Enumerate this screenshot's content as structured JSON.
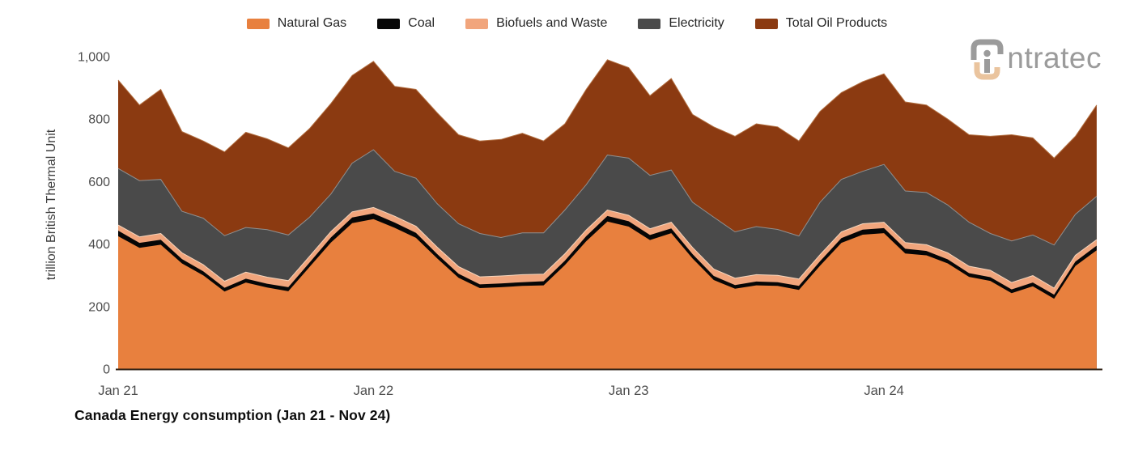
{
  "page": {
    "background": "#ffffff"
  },
  "logo": {
    "name": "intratec",
    "i_letter": "i",
    "text_rest": "ntratec",
    "gray": "#9b9b9b",
    "tan": "#eac49e"
  },
  "axis": {
    "y_tick_labels": [
      "0",
      "200",
      "400",
      "600",
      "800",
      "1,000"
    ],
    "y_tick_values": [
      0,
      200,
      400,
      600,
      800,
      1000
    ],
    "x_tick_labels": [
      "Jan 21",
      "Jan 22",
      "Jan 23",
      "Jan 24"
    ],
    "x_tick_indices": [
      0,
      12,
      24,
      36
    ]
  },
  "chart_data": {
    "type": "area",
    "stacked": true,
    "title": "Canada Energy consumption (Jan 21 - Nov 24)",
    "xlabel": "",
    "ylabel": "trillion British Thermal Unit",
    "ylim": [
      0,
      1000
    ],
    "grid": false,
    "legend_position": "top",
    "x": [
      "Jan 21",
      "Feb 21",
      "Mar 21",
      "Apr 21",
      "May 21",
      "Jun 21",
      "Jul 21",
      "Aug 21",
      "Sep 21",
      "Oct 21",
      "Nov 21",
      "Dec 21",
      "Jan 22",
      "Feb 22",
      "Mar 22",
      "Apr 22",
      "May 22",
      "Jun 22",
      "Jul 22",
      "Aug 22",
      "Sep 22",
      "Oct 22",
      "Nov 22",
      "Dec 22",
      "Jan 23",
      "Feb 23",
      "Mar 23",
      "Apr 23",
      "May 23",
      "Jun 23",
      "Jul 23",
      "Aug 23",
      "Sep 23",
      "Oct 23",
      "Nov 23",
      "Dec 23",
      "Jan 24",
      "Feb 24",
      "Mar 24",
      "Apr 24",
      "May 24",
      "Jun 24",
      "Jul 24",
      "Aug 24",
      "Sep 24",
      "Oct 24",
      "Nov 24"
    ],
    "series": [
      {
        "name": "Natural Gas",
        "color": "#E8803E",
        "values": [
          425,
          388,
          398,
          338,
          300,
          248,
          277,
          261,
          249,
          327,
          405,
          467,
          480,
          452,
          420,
          354,
          292,
          259,
          262,
          266,
          268,
          333,
          409,
          472,
          456,
          413,
          435,
          354,
          285,
          257,
          268,
          266,
          253,
          331,
          404,
          430,
          435,
          370,
          364,
          338,
          295,
          282,
          243,
          265,
          225,
          330,
          380
        ]
      },
      {
        "name": "Coal",
        "color": "#060606",
        "values": [
          18,
          16,
          16,
          14,
          13,
          12,
          12,
          12,
          13,
          14,
          16,
          18,
          18,
          17,
          16,
          14,
          13,
          12,
          12,
          12,
          13,
          14,
          16,
          18,
          17,
          16,
          15,
          14,
          13,
          12,
          12,
          12,
          13,
          14,
          15,
          16,
          16,
          15,
          14,
          13,
          12,
          12,
          12,
          12,
          13,
          14,
          15
        ]
      },
      {
        "name": "Biofuels and Waste",
        "color": "#F1A57C",
        "values": [
          18,
          19,
          20,
          20,
          21,
          21,
          21,
          21,
          21,
          20,
          19,
          18,
          19,
          20,
          21,
          22,
          23,
          24,
          24,
          24,
          23,
          22,
          20,
          19,
          19,
          20,
          20,
          21,
          22,
          22,
          22,
          22,
          22,
          21,
          20,
          19,
          19,
          20,
          20,
          21,
          22,
          22,
          22,
          22,
          21,
          20,
          19
        ]
      },
      {
        "name": "Electricity",
        "color": "#4A4A4A",
        "values": [
          181,
          180,
          173,
          133,
          149,
          146,
          143,
          152,
          146,
          125,
          120,
          156,
          185,
          144,
          154,
          139,
          137,
          139,
          123,
          134,
          132,
          140,
          145,
          176,
          183,
          171,
          167,
          145,
          166,
          148,
          154,
          147,
          138,
          168,
          168,
          168,
          185,
          165,
          167,
          153,
          141,
          118,
          133,
          130,
          138,
          131,
          139
        ]
      },
      {
        "name": "Total Oil Products",
        "color": "#8B3A11",
        "values": [
          283,
          242,
          288,
          255,
          247,
          268,
          305,
          291,
          279,
          284,
          290,
          281,
          283,
          272,
          284,
          291,
          285,
          296,
          314,
          319,
          294,
          276,
          305,
          305,
          290,
          255,
          293,
          281,
          289,
          306,
          329,
          328,
          304,
          291,
          278,
          287,
          290,
          285,
          280,
          275,
          280,
          311,
          340,
          311,
          278,
          250,
          292
        ]
      }
    ]
  }
}
